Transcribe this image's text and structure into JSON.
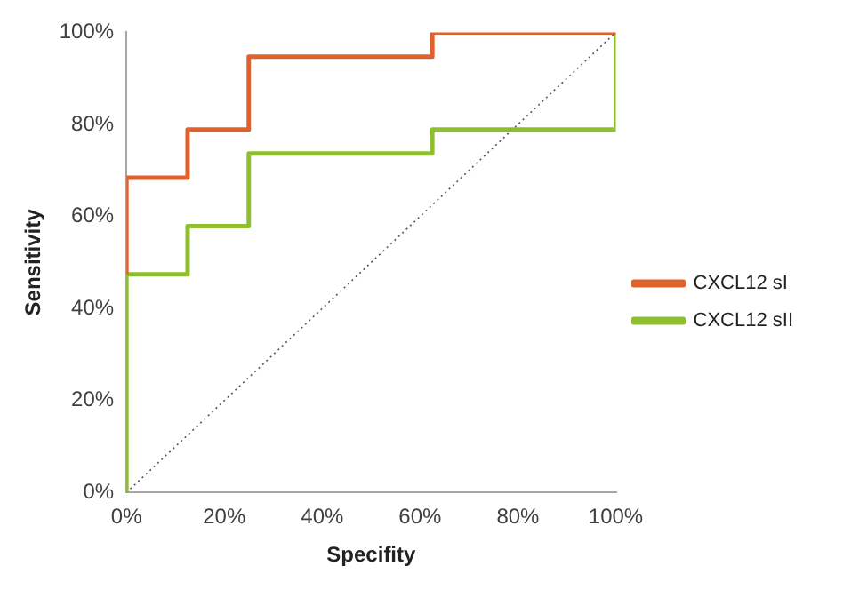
{
  "chart_data": {
    "type": "line",
    "xlabel": "Specifity",
    "ylabel": "Sensitivity",
    "xlim": [
      0,
      100
    ],
    "ylim": [
      0,
      100
    ],
    "xticks": [
      {
        "value": 0,
        "label": "0%"
      },
      {
        "value": 20,
        "label": "20%"
      },
      {
        "value": 40,
        "label": "40%"
      },
      {
        "value": 60,
        "label": "60%"
      },
      {
        "value": 80,
        "label": "80%"
      },
      {
        "value": 100,
        "label": "100%"
      }
    ],
    "yticks": [
      {
        "value": 0,
        "label": "0%"
      },
      {
        "value": 20,
        "label": "20%"
      },
      {
        "value": 40,
        "label": "40%"
      },
      {
        "value": 60,
        "label": "60%"
      },
      {
        "value": 80,
        "label": "80%"
      },
      {
        "value": 100,
        "label": "100%"
      }
    ],
    "grid": false,
    "legend": "right",
    "marker": "none",
    "series": [
      {
        "name": "CXCL12 sI",
        "color": "#e0622a",
        "line_style": "solid",
        "x": [
          0,
          0,
          12.5,
          12.5,
          25,
          25,
          62.5,
          62.5,
          100
        ],
        "values": [
          47.4,
          68.4,
          68.4,
          78.9,
          78.9,
          94.7,
          94.7,
          100,
          100
        ]
      },
      {
        "name": "CXCL12 sII",
        "color": "#8fbf2f",
        "line_style": "solid",
        "x": [
          0,
          0,
          12.5,
          12.5,
          25,
          25,
          62.5,
          62.5,
          100,
          100
        ],
        "values": [
          0,
          47.4,
          47.4,
          57.9,
          57.9,
          73.7,
          73.7,
          78.9,
          78.9,
          100
        ]
      },
      {
        "color": "#555555",
        "line_style": "dotted",
        "x": [
          0,
          100
        ],
        "values": [
          0,
          100
        ]
      }
    ]
  }
}
